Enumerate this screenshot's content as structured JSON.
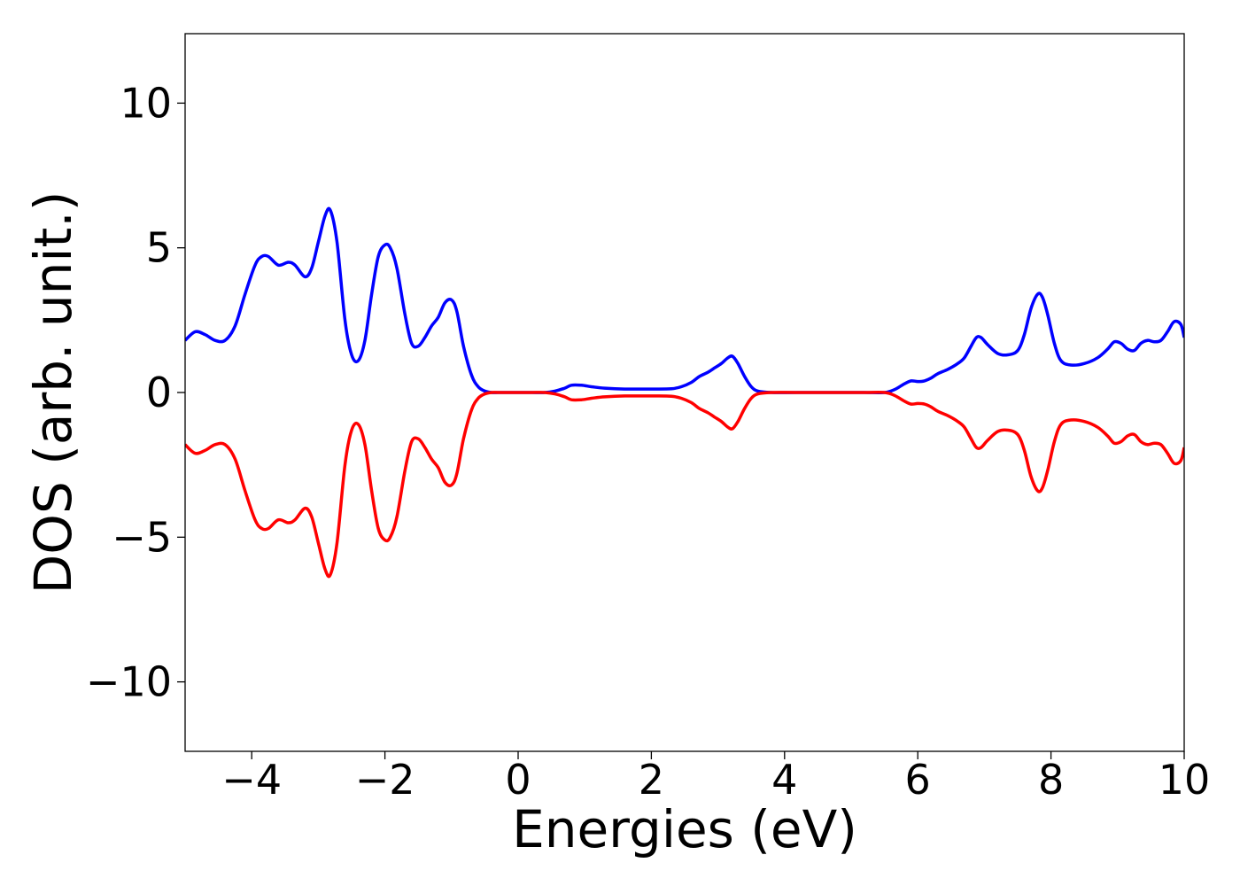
{
  "chart_data": {
    "type": "line",
    "title": "",
    "xlabel": "Energies (eV)",
    "ylabel": "DOS (arb. unit.)",
    "xlim": [
      -5,
      10
    ],
    "ylim": [
      -12.4,
      12.4
    ],
    "xticks": [
      -4,
      -2,
      0,
      2,
      4,
      6,
      8,
      10
    ],
    "xtick_labels": [
      "−4",
      "−2",
      "0",
      "2",
      "4",
      "6",
      "8",
      "10"
    ],
    "yticks": [
      10,
      5,
      0,
      -5,
      -10
    ],
    "ytick_labels": [
      "10",
      "5",
      "0",
      "−5",
      "−10"
    ],
    "grid": false,
    "legend": "none",
    "series": [
      {
        "color": "#0000ff",
        "x": [
          -5.0,
          -4.85,
          -4.7,
          -4.55,
          -4.4,
          -4.25,
          -4.1,
          -3.95,
          -3.85,
          -3.75,
          -3.6,
          -3.45,
          -3.35,
          -3.2,
          -3.1,
          -3.0,
          -2.9,
          -2.82,
          -2.72,
          -2.6,
          -2.5,
          -2.4,
          -2.3,
          -2.2,
          -2.1,
          -2.0,
          -1.92,
          -1.82,
          -1.7,
          -1.6,
          -1.5,
          -1.4,
          -1.3,
          -1.2,
          -1.1,
          -1.0,
          -0.92,
          -0.82,
          -0.7,
          -0.6,
          -0.5,
          -0.4,
          -0.3,
          -0.2,
          0.0,
          0.2,
          0.4,
          0.55,
          0.7,
          0.8,
          0.95,
          1.1,
          1.3,
          1.6,
          2.0,
          2.3,
          2.45,
          2.6,
          2.72,
          2.85,
          2.95,
          3.05,
          3.15,
          3.22,
          3.3,
          3.4,
          3.5,
          3.6,
          3.8,
          4.2,
          4.8,
          5.2,
          5.5,
          5.65,
          5.8,
          5.9,
          6.0,
          6.1,
          6.2,
          6.3,
          6.45,
          6.6,
          6.7,
          6.8,
          6.88,
          6.95,
          7.05,
          7.2,
          7.35,
          7.5,
          7.6,
          7.7,
          7.8,
          7.87,
          7.95,
          8.05,
          8.15,
          8.3,
          8.5,
          8.7,
          8.85,
          8.95,
          9.05,
          9.15,
          9.25,
          9.35,
          9.45,
          9.55,
          9.65,
          9.75,
          9.85,
          9.95,
          10.0
        ],
        "y": [
          1.8,
          2.1,
          2.0,
          1.8,
          1.8,
          2.3,
          3.4,
          4.4,
          4.7,
          4.7,
          4.4,
          4.5,
          4.4,
          4.0,
          4.3,
          5.2,
          6.1,
          6.3,
          5.2,
          2.5,
          1.3,
          1.1,
          1.8,
          3.4,
          4.7,
          5.1,
          5.0,
          4.3,
          2.7,
          1.7,
          1.6,
          1.9,
          2.3,
          2.6,
          3.1,
          3.2,
          2.8,
          1.6,
          0.6,
          0.2,
          0.05,
          0.0,
          0.0,
          0.0,
          0.0,
          0.0,
          0.0,
          0.05,
          0.15,
          0.25,
          0.25,
          0.2,
          0.15,
          0.12,
          0.12,
          0.13,
          0.2,
          0.35,
          0.55,
          0.7,
          0.85,
          1.0,
          1.2,
          1.25,
          1.0,
          0.55,
          0.2,
          0.05,
          0.0,
          0.0,
          0.0,
          0.0,
          0.0,
          0.1,
          0.3,
          0.4,
          0.38,
          0.4,
          0.5,
          0.65,
          0.8,
          1.0,
          1.2,
          1.6,
          1.9,
          1.9,
          1.65,
          1.35,
          1.3,
          1.45,
          2.0,
          2.9,
          3.4,
          3.3,
          2.7,
          1.7,
          1.1,
          0.95,
          1.0,
          1.2,
          1.5,
          1.75,
          1.7,
          1.5,
          1.45,
          1.7,
          1.8,
          1.75,
          1.8,
          2.1,
          2.45,
          2.35,
          1.9
        ]
      },
      {
        "color": "#ff0000",
        "x": [
          -5.0,
          -4.85,
          -4.7,
          -4.55,
          -4.4,
          -4.25,
          -4.1,
          -3.95,
          -3.85,
          -3.75,
          -3.6,
          -3.45,
          -3.35,
          -3.2,
          -3.1,
          -3.0,
          -2.9,
          -2.82,
          -2.72,
          -2.6,
          -2.5,
          -2.4,
          -2.3,
          -2.2,
          -2.1,
          -2.0,
          -1.92,
          -1.82,
          -1.7,
          -1.6,
          -1.5,
          -1.4,
          -1.3,
          -1.2,
          -1.1,
          -1.0,
          -0.92,
          -0.82,
          -0.7,
          -0.6,
          -0.5,
          -0.4,
          -0.3,
          -0.2,
          0.0,
          0.2,
          0.4,
          0.55,
          0.7,
          0.8,
          0.95,
          1.1,
          1.3,
          1.6,
          2.0,
          2.3,
          2.45,
          2.6,
          2.72,
          2.85,
          2.95,
          3.05,
          3.15,
          3.22,
          3.3,
          3.4,
          3.5,
          3.6,
          3.8,
          4.2,
          4.8,
          5.2,
          5.5,
          5.65,
          5.8,
          5.9,
          6.0,
          6.1,
          6.2,
          6.3,
          6.45,
          6.6,
          6.7,
          6.8,
          6.88,
          6.95,
          7.05,
          7.2,
          7.35,
          7.5,
          7.6,
          7.7,
          7.8,
          7.87,
          7.95,
          8.05,
          8.15,
          8.3,
          8.5,
          8.7,
          8.85,
          8.95,
          9.05,
          9.15,
          9.25,
          9.35,
          9.45,
          9.55,
          9.65,
          9.75,
          9.85,
          9.95,
          10.0
        ],
        "y": [
          -1.8,
          -2.1,
          -2.0,
          -1.8,
          -1.8,
          -2.3,
          -3.4,
          -4.4,
          -4.7,
          -4.7,
          -4.4,
          -4.5,
          -4.4,
          -4.0,
          -4.3,
          -5.2,
          -6.1,
          -6.3,
          -5.2,
          -2.5,
          -1.3,
          -1.1,
          -1.8,
          -3.4,
          -4.7,
          -5.1,
          -5.0,
          -4.3,
          -2.7,
          -1.7,
          -1.6,
          -1.9,
          -2.3,
          -2.6,
          -3.1,
          -3.2,
          -2.8,
          -1.6,
          -0.6,
          -0.2,
          -0.05,
          0.0,
          0.0,
          0.0,
          0.0,
          0.0,
          0.0,
          -0.05,
          -0.15,
          -0.25,
          -0.25,
          -0.2,
          -0.15,
          -0.12,
          -0.12,
          -0.13,
          -0.2,
          -0.35,
          -0.55,
          -0.7,
          -0.85,
          -1.0,
          -1.2,
          -1.25,
          -1.0,
          -0.55,
          -0.2,
          -0.05,
          0.0,
          0.0,
          0.0,
          0.0,
          0.0,
          -0.1,
          -0.3,
          -0.4,
          -0.38,
          -0.4,
          -0.5,
          -0.65,
          -0.8,
          -1.0,
          -1.2,
          -1.6,
          -1.9,
          -1.9,
          -1.65,
          -1.35,
          -1.3,
          -1.45,
          -2.0,
          -2.9,
          -3.4,
          -3.3,
          -2.7,
          -1.7,
          -1.1,
          -0.95,
          -1.0,
          -1.2,
          -1.5,
          -1.75,
          -1.7,
          -1.5,
          -1.45,
          -1.7,
          -1.8,
          -1.75,
          -1.8,
          -2.1,
          -2.45,
          -2.35,
          -1.9
        ]
      }
    ]
  }
}
